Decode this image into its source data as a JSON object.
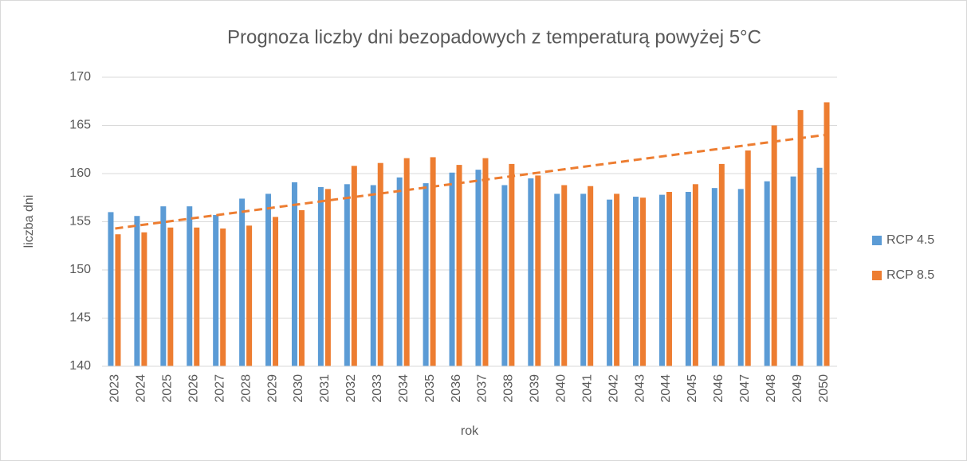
{
  "chart_data": {
    "type": "bar",
    "title": "Prognoza liczby dni bezopadowych z temperaturą powyżej 5°C",
    "xlabel": "rok",
    "ylabel": "liczba dni",
    "categories": [
      "2023",
      "2024",
      "2025",
      "2026",
      "2027",
      "2028",
      "2029",
      "2030",
      "2031",
      "2032",
      "2033",
      "2034",
      "2035",
      "2036",
      "2037",
      "2038",
      "2039",
      "2040",
      "2041",
      "2042",
      "2043",
      "2044",
      "2045",
      "2046",
      "2047",
      "2048",
      "2049",
      "2050"
    ],
    "series": [
      {
        "name": "RCP 4.5",
        "color": "#5b9bd5",
        "values": [
          156.0,
          155.6,
          156.6,
          156.6,
          155.7,
          157.4,
          157.9,
          159.1,
          158.6,
          158.9,
          158.8,
          159.6,
          159.0,
          160.1,
          160.4,
          158.8,
          159.5,
          157.9,
          157.9,
          157.3,
          157.6,
          157.8,
          158.1,
          158.5,
          158.4,
          159.2,
          159.7,
          160.6
        ]
      },
      {
        "name": "RCP 8.5",
        "color": "#ed7d31",
        "values": [
          153.7,
          153.9,
          154.4,
          154.4,
          154.3,
          154.6,
          155.5,
          156.2,
          158.4,
          160.8,
          161.1,
          161.6,
          161.7,
          160.9,
          161.6,
          161.0,
          159.8,
          158.8,
          158.7,
          157.9,
          157.5,
          158.1,
          158.9,
          161.0,
          162.4,
          165.0,
          166.6,
          167.4
        ]
      }
    ],
    "trend": {
      "color": "#ed7d31",
      "dashed": true,
      "start": 154.3,
      "end": 164.0
    },
    "ylim": [
      140,
      170
    ],
    "yticks": [
      140,
      145,
      150,
      155,
      160,
      165,
      170
    ],
    "grid": true,
    "legend": "right"
  }
}
